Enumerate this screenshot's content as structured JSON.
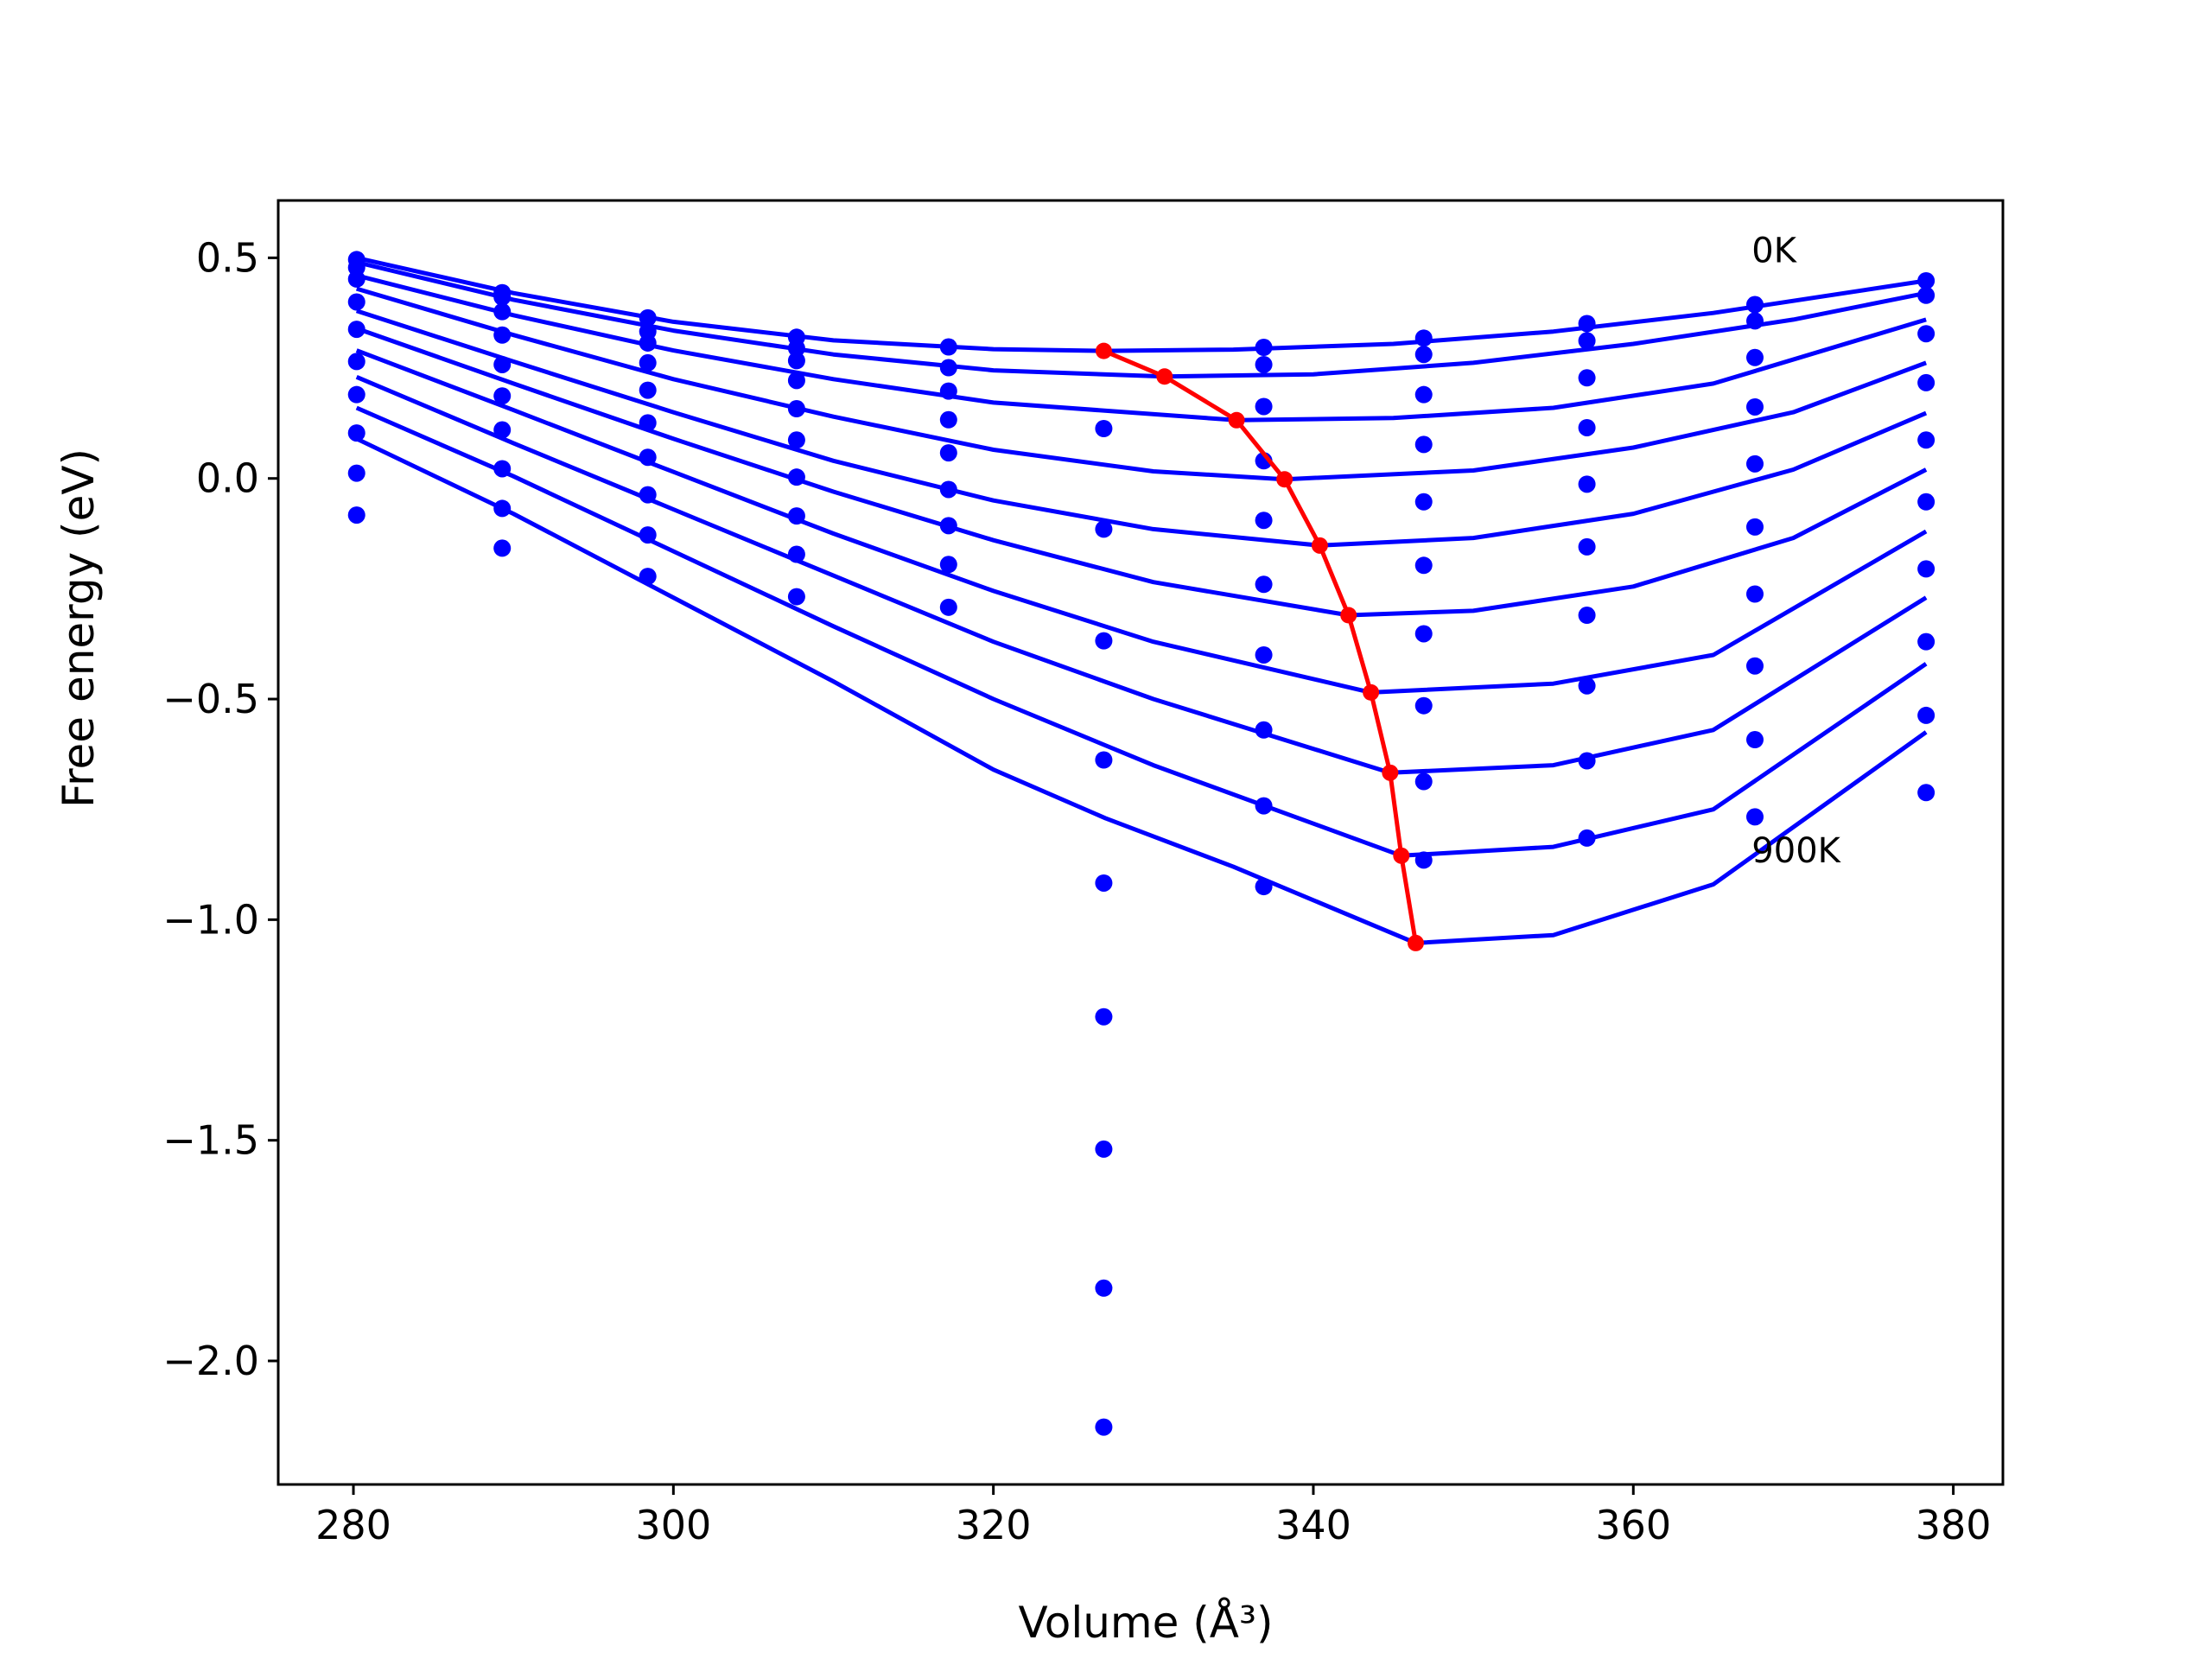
{
  "chart_data": {
    "type": "scatter",
    "title": "",
    "xlabel": "Volume ($\\AA^3$)",
    "xlabel_display": "Volume (Å³)",
    "ylabel": "Free energy (eV)",
    "xlim": [
      275.3,
      383.1
    ],
    "ylim": [
      -2.28,
      0.63
    ],
    "xticks": [
      280,
      300,
      320,
      340,
      360,
      380
    ],
    "xtick_labels": [
      "280",
      "300",
      "320",
      "340",
      "360",
      "380"
    ],
    "yticks": [
      0.5,
      0.0,
      -0.5,
      -1.0,
      -1.5,
      -2.0
    ],
    "ytick_labels": [
      "0.5",
      "0.0",
      "−0.5",
      "−1.0",
      "−1.5",
      "−2.0"
    ],
    "grid": false,
    "legend": "none",
    "colors": {
      "points": "#0000ff",
      "fits": "#0000ff",
      "minimum_path": "#ff0000",
      "axes": "#000000"
    },
    "annotations": [
      {
        "text": "0K",
        "x": 367.4,
        "y": 0.49
      },
      {
        "text": "900K",
        "x": 367.4,
        "y": -0.87
      }
    ],
    "series": [
      {
        "temperature_index": 0,
        "points": [
          [
            280.2,
            0.496
          ],
          [
            289.3,
            0.421
          ],
          [
            298.4,
            0.364
          ],
          [
            307.7,
            0.32
          ],
          [
            317.2,
            0.298
          ],
          [
            336.9,
            0.297
          ],
          [
            346.9,
            0.318
          ],
          [
            357.1,
            0.351
          ],
          [
            367.6,
            0.394
          ],
          [
            378.3,
            0.448
          ]
        ],
        "fit": [
          [
            280.2,
            0.5
          ],
          [
            290,
            0.42
          ],
          [
            300,
            0.355
          ],
          [
            310,
            0.313
          ],
          [
            320,
            0.293
          ],
          [
            326.9,
            0.289
          ],
          [
            335,
            0.292
          ],
          [
            345,
            0.305
          ],
          [
            355,
            0.333
          ],
          [
            365,
            0.375
          ],
          [
            378.3,
            0.448
          ]
        ]
      },
      {
        "temperature_index": 1,
        "points": [
          [
            280.2,
            0.478
          ],
          [
            289.3,
            0.411
          ],
          [
            298.4,
            0.333
          ],
          [
            307.7,
            0.295
          ],
          [
            317.2,
            0.251
          ],
          [
            336.9,
            0.258
          ],
          [
            346.9,
            0.281
          ],
          [
            357.1,
            0.312
          ],
          [
            367.6,
            0.357
          ],
          [
            378.3,
            0.415
          ]
        ],
        "fit": [
          [
            280.2,
            0.49
          ],
          [
            290,
            0.405
          ],
          [
            300,
            0.335
          ],
          [
            310,
            0.281
          ],
          [
            320,
            0.245
          ],
          [
            330.7,
            0.231
          ],
          [
            340,
            0.236
          ],
          [
            350,
            0.262
          ],
          [
            360,
            0.305
          ],
          [
            370,
            0.36
          ],
          [
            378.3,
            0.42
          ]
        ]
      },
      {
        "temperature_index": 2,
        "points": [
          [
            280.2,
            0.452
          ],
          [
            289.3,
            0.378
          ],
          [
            298.4,
            0.307
          ],
          [
            307.7,
            0.267
          ],
          [
            317.2,
            0.198
          ],
          [
            336.9,
            0.163
          ],
          [
            346.9,
            0.19
          ],
          [
            357.1,
            0.228
          ],
          [
            367.6,
            0.274
          ],
          [
            378.3,
            0.328
          ]
        ],
        "fit": [
          [
            280.2,
            0.46
          ],
          [
            290,
            0.37
          ],
          [
            300,
            0.29
          ],
          [
            310,
            0.225
          ],
          [
            320,
            0.172
          ],
          [
            335.2,
            0.132
          ],
          [
            345,
            0.137
          ],
          [
            355,
            0.16
          ],
          [
            365,
            0.215
          ],
          [
            378.3,
            0.36
          ]
        ]
      },
      {
        "temperature_index": 3,
        "points": [
          [
            280.2,
            0.4
          ],
          [
            289.3,
            0.325
          ],
          [
            298.4,
            0.262
          ],
          [
            307.7,
            0.222
          ],
          [
            317.2,
            0.133
          ],
          [
            336.9,
            0.04
          ],
          [
            346.9,
            0.077
          ],
          [
            357.1,
            0.115
          ],
          [
            367.6,
            0.162
          ],
          [
            378.3,
            0.217
          ]
        ],
        "fit": [
          [
            280.2,
            0.43
          ],
          [
            290,
            0.325
          ],
          [
            300,
            0.225
          ],
          [
            310,
            0.14
          ],
          [
            320,
            0.065
          ],
          [
            330,
            0.016
          ],
          [
            338.2,
            -0.002
          ],
          [
            350,
            0.018
          ],
          [
            360,
            0.07
          ],
          [
            370,
            0.15
          ],
          [
            378.3,
            0.262
          ]
        ]
      },
      {
        "temperature_index": 4,
        "points": [
          [
            280.2,
            0.338
          ],
          [
            289.3,
            0.258
          ],
          [
            298.4,
            0.2
          ],
          [
            307.7,
            0.158
          ],
          [
            317.2,
            0.058
          ],
          [
            326.9,
            0.113
          ],
          [
            336.9,
            -0.095
          ],
          [
            346.9,
            -0.053
          ],
          [
            357.1,
            -0.013
          ],
          [
            367.6,
            0.033
          ],
          [
            378.3,
            0.087
          ]
        ],
        "fit": [
          [
            280.2,
            0.38
          ],
          [
            290,
            0.265
          ],
          [
            300,
            0.15
          ],
          [
            310,
            0.04
          ],
          [
            320,
            -0.05
          ],
          [
            330,
            -0.115
          ],
          [
            340.4,
            -0.152
          ],
          [
            350,
            -0.135
          ],
          [
            360,
            -0.08
          ],
          [
            370,
            0.02
          ],
          [
            378.3,
            0.148
          ]
        ]
      },
      {
        "temperature_index": 5,
        "points": [
          [
            280.2,
            0.265
          ],
          [
            289.3,
            0.187
          ],
          [
            298.4,
            0.126
          ],
          [
            307.7,
            0.087
          ],
          [
            317.2,
            -0.025
          ],
          [
            326.9,
            -0.115
          ],
          [
            336.9,
            -0.24
          ],
          [
            346.9,
            -0.197
          ],
          [
            357.1,
            -0.155
          ],
          [
            367.6,
            -0.11
          ],
          [
            378.3,
            -0.053
          ]
        ],
        "fit": [
          [
            280.2,
            0.34
          ],
          [
            290,
            0.215
          ],
          [
            300,
            0.09
          ],
          [
            310,
            -0.03
          ],
          [
            320,
            -0.14
          ],
          [
            330,
            -0.235
          ],
          [
            342.2,
            -0.31
          ],
          [
            350,
            -0.3
          ],
          [
            360,
            -0.245
          ],
          [
            370,
            -0.135
          ],
          [
            378.3,
            0.02
          ]
        ]
      },
      {
        "temperature_index": 6,
        "points": [
          [
            280.2,
            0.19
          ],
          [
            289.3,
            0.11
          ],
          [
            298.4,
            0.048
          ],
          [
            307.7,
            0.003
          ],
          [
            317.2,
            -0.107
          ],
          [
            326.9,
            -0.368
          ],
          [
            336.9,
            -0.4
          ],
          [
            346.9,
            -0.352
          ],
          [
            357.1,
            -0.31
          ],
          [
            367.6,
            -0.262
          ],
          [
            378.3,
            -0.205
          ]
        ],
        "fit": [
          [
            280.2,
            0.29
          ],
          [
            290,
            0.155
          ],
          [
            300,
            0.015
          ],
          [
            310,
            -0.125
          ],
          [
            320,
            -0.255
          ],
          [
            330,
            -0.37
          ],
          [
            343.6,
            -0.485
          ],
          [
            355,
            -0.465
          ],
          [
            365,
            -0.4
          ],
          [
            378.3,
            -0.12
          ]
        ]
      },
      {
        "temperature_index": 7,
        "points": [
          [
            280.2,
            0.103
          ],
          [
            289.3,
            0.022
          ],
          [
            298.4,
            -0.037
          ],
          [
            307.7,
            -0.085
          ],
          [
            317.2,
            -0.195
          ],
          [
            326.9,
            -0.638
          ],
          [
            336.9,
            -0.57
          ],
          [
            346.9,
            -0.515
          ],
          [
            357.1,
            -0.47
          ],
          [
            367.6,
            -0.425
          ],
          [
            378.3,
            -0.37
          ]
        ],
        "fit": [
          [
            280.2,
            0.23
          ],
          [
            290,
            0.08
          ],
          [
            300,
            -0.07
          ],
          [
            310,
            -0.22
          ],
          [
            320,
            -0.37
          ],
          [
            330,
            -0.5
          ],
          [
            344.8,
            -0.667
          ],
          [
            355,
            -0.65
          ],
          [
            365,
            -0.57
          ],
          [
            378.3,
            -0.27
          ]
        ]
      },
      {
        "temperature_index": 8,
        "points": [
          [
            280.2,
            0.012
          ],
          [
            289.3,
            -0.068
          ],
          [
            298.4,
            -0.128
          ],
          [
            307.7,
            -0.172
          ],
          [
            317.2,
            -0.292
          ],
          [
            326.9,
            -0.917
          ],
          [
            336.9,
            -0.742
          ],
          [
            346.9,
            -0.687
          ],
          [
            357.1,
            -0.64
          ],
          [
            367.6,
            -0.592
          ],
          [
            378.3,
            -0.537
          ]
        ],
        "fit": [
          [
            280.2,
            0.16
          ],
          [
            290,
            0.005
          ],
          [
            300,
            -0.165
          ],
          [
            310,
            -0.335
          ],
          [
            320,
            -0.5
          ],
          [
            330,
            -0.65
          ],
          [
            345.5,
            -0.855
          ],
          [
            355,
            -0.835
          ],
          [
            365,
            -0.75
          ],
          [
            378.3,
            -0.42
          ]
        ]
      },
      {
        "temperature_index": 9,
        "points": [
          [
            280.2,
            -0.083
          ],
          [
            289.3,
            -0.158
          ],
          [
            298.4,
            -0.222
          ],
          [
            307.7,
            -0.268
          ],
          [
            326.9,
            -1.22
          ],
          [
            336.9,
            -0.925
          ],
          [
            346.9,
            -0.865
          ],
          [
            357.1,
            -0.815
          ],
          [
            367.6,
            -0.767
          ],
          [
            378.3,
            -0.712
          ]
        ],
        "fit": [
          [
            280.2,
            0.09
          ],
          [
            290,
            -0.08
          ],
          [
            300,
            -0.27
          ],
          [
            310,
            -0.46
          ],
          [
            320,
            -0.66
          ],
          [
            327,
            -0.77
          ],
          [
            335,
            -0.88
          ],
          [
            346.4,
            -1.053
          ],
          [
            355,
            -1.035
          ],
          [
            365,
            -0.92
          ],
          [
            378.3,
            -0.575
          ]
        ]
      }
    ],
    "outlier_points": [
      [
        326.9,
        -1.52
      ],
      [
        326.9,
        -1.835
      ],
      [
        326.9,
        -2.15
      ]
    ],
    "minimum_path": [
      [
        326.9,
        0.289
      ],
      [
        330.7,
        0.231
      ],
      [
        335.2,
        0.132
      ],
      [
        338.2,
        -0.002
      ],
      [
        340.4,
        -0.152
      ],
      [
        342.2,
        -0.31
      ],
      [
        343.6,
        -0.485
      ],
      [
        344.8,
        -0.667
      ],
      [
        345.5,
        -0.855
      ],
      [
        346.4,
        -1.053
      ]
    ]
  }
}
